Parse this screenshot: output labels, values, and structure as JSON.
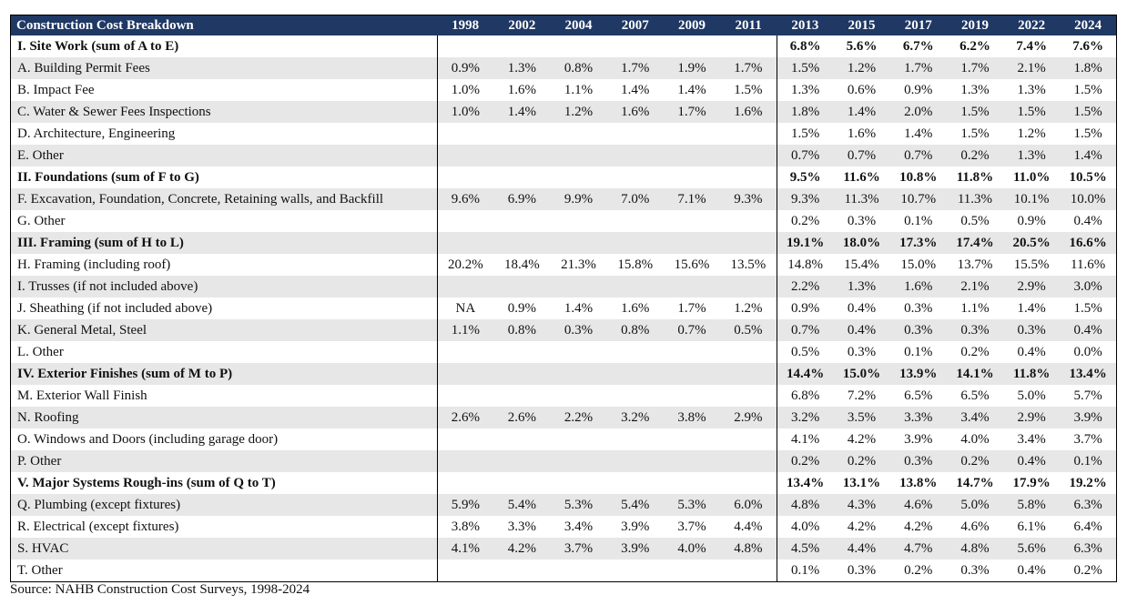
{
  "table": {
    "header_label": "Construction Cost Breakdown",
    "years": [
      "1998",
      "2002",
      "2004",
      "2007",
      "2009",
      "2011",
      "2013",
      "2015",
      "2017",
      "2019",
      "2022",
      "2024"
    ],
    "rows": [
      {
        "label": "I. Site Work (sum of A to E)",
        "section": true,
        "values": [
          "",
          "",
          "",
          "",
          "",
          "",
          "6.8%",
          "5.6%",
          "6.7%",
          "6.2%",
          "7.4%",
          "7.6%"
        ]
      },
      {
        "label": "A. Building Permit Fees",
        "section": false,
        "values": [
          "0.9%",
          "1.3%",
          "0.8%",
          "1.7%",
          "1.9%",
          "1.7%",
          "1.5%",
          "1.2%",
          "1.7%",
          "1.7%",
          "2.1%",
          "1.8%"
        ]
      },
      {
        "label": "B. Impact Fee",
        "section": false,
        "values": [
          "1.0%",
          "1.6%",
          "1.1%",
          "1.4%",
          "1.4%",
          "1.5%",
          "1.3%",
          "0.6%",
          "0.9%",
          "1.3%",
          "1.3%",
          "1.5%"
        ]
      },
      {
        "label": "C. Water & Sewer Fees Inspections",
        "section": false,
        "values": [
          "1.0%",
          "1.4%",
          "1.2%",
          "1.6%",
          "1.7%",
          "1.6%",
          "1.8%",
          "1.4%",
          "2.0%",
          "1.5%",
          "1.5%",
          "1.5%"
        ]
      },
      {
        "label": "D. Architecture, Engineering",
        "section": false,
        "values": [
          "",
          "",
          "",
          "",
          "",
          "",
          "1.5%",
          "1.6%",
          "1.4%",
          "1.5%",
          "1.2%",
          "1.5%"
        ]
      },
      {
        "label": "E. Other",
        "section": false,
        "values": [
          "",
          "",
          "",
          "",
          "",
          "",
          "0.7%",
          "0.7%",
          "0.7%",
          "0.2%",
          "1.3%",
          "1.4%"
        ]
      },
      {
        "label": "II. Foundations (sum of F to G)",
        "section": true,
        "values": [
          "",
          "",
          "",
          "",
          "",
          "",
          "9.5%",
          "11.6%",
          "10.8%",
          "11.8%",
          "11.0%",
          "10.5%"
        ]
      },
      {
        "label": "F. Excavation, Foundation, Concrete, Retaining walls, and Backfill",
        "section": false,
        "values": [
          "9.6%",
          "6.9%",
          "9.9%",
          "7.0%",
          "7.1%",
          "9.3%",
          "9.3%",
          "11.3%",
          "10.7%",
          "11.3%",
          "10.1%",
          "10.0%"
        ]
      },
      {
        "label": "G. Other",
        "section": false,
        "values": [
          "",
          "",
          "",
          "",
          "",
          "",
          "0.2%",
          "0.3%",
          "0.1%",
          "0.5%",
          "0.9%",
          "0.4%"
        ]
      },
      {
        "label": "III. Framing (sum of H to L)",
        "section": true,
        "values": [
          "",
          "",
          "",
          "",
          "",
          "",
          "19.1%",
          "18.0%",
          "17.3%",
          "17.4%",
          "20.5%",
          "16.6%"
        ]
      },
      {
        "label": "H. Framing (including roof)",
        "section": false,
        "values": [
          "20.2%",
          "18.4%",
          "21.3%",
          "15.8%",
          "15.6%",
          "13.5%",
          "14.8%",
          "15.4%",
          "15.0%",
          "13.7%",
          "15.5%",
          "11.6%"
        ]
      },
      {
        "label": "I. Trusses (if not included above)",
        "section": false,
        "values": [
          "",
          "",
          "",
          "",
          "",
          "",
          "2.2%",
          "1.3%",
          "1.6%",
          "2.1%",
          "2.9%",
          "3.0%"
        ]
      },
      {
        "label": "J. Sheathing (if not included above)",
        "section": false,
        "values": [
          "NA",
          "0.9%",
          "1.4%",
          "1.6%",
          "1.7%",
          "1.2%",
          "0.9%",
          "0.4%",
          "0.3%",
          "1.1%",
          "1.4%",
          "1.5%"
        ]
      },
      {
        "label": "K. General Metal, Steel",
        "section": false,
        "values": [
          "1.1%",
          "0.8%",
          "0.3%",
          "0.8%",
          "0.7%",
          "0.5%",
          "0.7%",
          "0.4%",
          "0.3%",
          "0.3%",
          "0.3%",
          "0.4%"
        ]
      },
      {
        "label": "L. Other",
        "section": false,
        "values": [
          "",
          "",
          "",
          "",
          "",
          "",
          "0.5%",
          "0.3%",
          "0.1%",
          "0.2%",
          "0.4%",
          "0.0%"
        ]
      },
      {
        "label": "IV. Exterior Finishes (sum of M to P)",
        "section": true,
        "values": [
          "",
          "",
          "",
          "",
          "",
          "",
          "14.4%",
          "15.0%",
          "13.9%",
          "14.1%",
          "11.8%",
          "13.4%"
        ]
      },
      {
        "label": "M. Exterior Wall Finish",
        "section": false,
        "values": [
          "",
          "",
          "",
          "",
          "",
          "",
          "6.8%",
          "7.2%",
          "6.5%",
          "6.5%",
          "5.0%",
          "5.7%"
        ]
      },
      {
        "label": "N. Roofing",
        "section": false,
        "values": [
          "2.6%",
          "2.6%",
          "2.2%",
          "3.2%",
          "3.8%",
          "2.9%",
          "3.2%",
          "3.5%",
          "3.3%",
          "3.4%",
          "2.9%",
          "3.9%"
        ]
      },
      {
        "label": "O. Windows and Doors (including garage door)",
        "section": false,
        "values": [
          "",
          "",
          "",
          "",
          "",
          "",
          "4.1%",
          "4.2%",
          "3.9%",
          "4.0%",
          "3.4%",
          "3.7%"
        ]
      },
      {
        "label": "P. Other",
        "section": false,
        "values": [
          "",
          "",
          "",
          "",
          "",
          "",
          "0.2%",
          "0.2%",
          "0.3%",
          "0.2%",
          "0.4%",
          "0.1%"
        ]
      },
      {
        "label": "V. Major Systems Rough-ins (sum of Q to T)",
        "section": true,
        "values": [
          "",
          "",
          "",
          "",
          "",
          "",
          "13.4%",
          "13.1%",
          "13.8%",
          "14.7%",
          "17.9%",
          "19.2%"
        ]
      },
      {
        "label": "Q. Plumbing (except fixtures)",
        "section": false,
        "values": [
          "5.9%",
          "5.4%",
          "5.3%",
          "5.4%",
          "5.3%",
          "6.0%",
          "4.8%",
          "4.3%",
          "4.6%",
          "5.0%",
          "5.8%",
          "6.3%"
        ]
      },
      {
        "label": "R. Electrical (except fixtures)",
        "section": false,
        "values": [
          "3.8%",
          "3.3%",
          "3.4%",
          "3.9%",
          "3.7%",
          "4.4%",
          "4.0%",
          "4.2%",
          "4.2%",
          "4.6%",
          "6.1%",
          "6.4%"
        ]
      },
      {
        "label": "S. HVAC",
        "section": false,
        "values": [
          "4.1%",
          "4.2%",
          "3.7%",
          "3.9%",
          "4.0%",
          "4.8%",
          "4.5%",
          "4.4%",
          "4.7%",
          "4.8%",
          "5.6%",
          "6.3%"
        ]
      },
      {
        "label": "T. Other",
        "section": false,
        "values": [
          "",
          "",
          "",
          "",
          "",
          "",
          "0.1%",
          "0.3%",
          "0.2%",
          "0.3%",
          "0.4%",
          "0.2%"
        ]
      }
    ]
  },
  "source": "Source: NAHB Construction Cost Surveys, 1998-2024",
  "colors": {
    "header_bg": "#1f3864",
    "header_text": "#ffffff",
    "shade_row": "#e7e7e7"
  }
}
